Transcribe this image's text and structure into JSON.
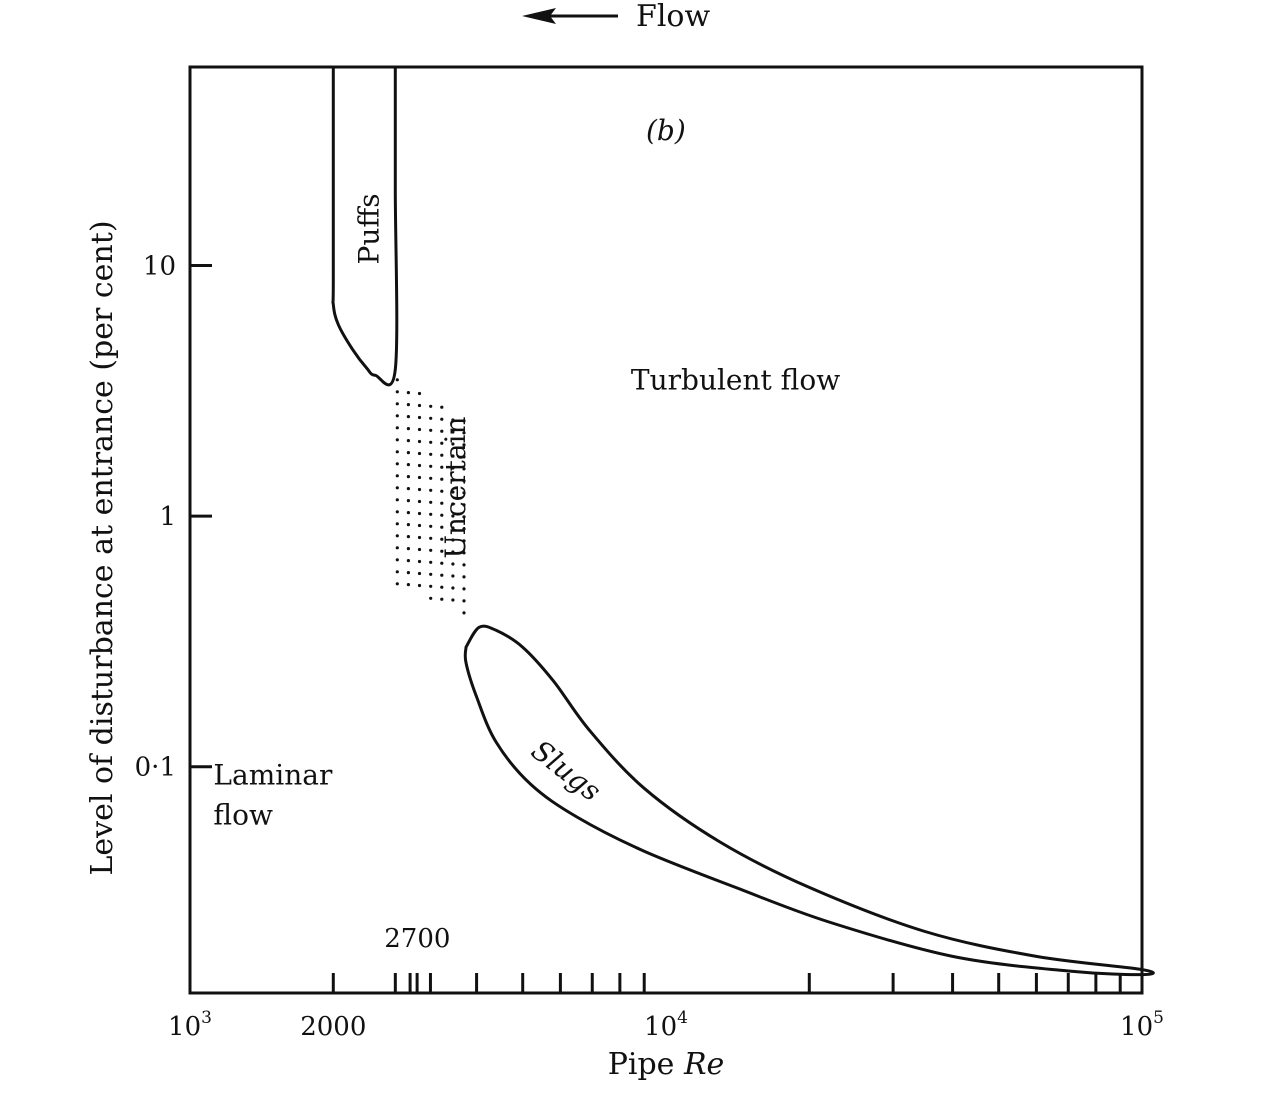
{
  "chart_data": {
    "type": "line",
    "panel_label": "(b)",
    "flow_indicator": {
      "label": "Flow",
      "direction": "left"
    },
    "xlabel": {
      "prefix": "Pipe ",
      "italic": "Re"
    },
    "ylabel": "Level of disturbance at entrance (per cent)",
    "x_scale": "log",
    "y_scale": "log",
    "xlim": [
      1000,
      100000
    ],
    "ylim": [
      0.0125,
      62
    ],
    "x_tick_labels": [
      {
        "value": 1000,
        "base": "10",
        "exp": "3"
      },
      {
        "value": 2000,
        "base": "2000",
        "exp": ""
      },
      {
        "value": 10000,
        "base": "10",
        "exp": "4"
      },
      {
        "value": 100000,
        "base": "10",
        "exp": "5"
      }
    ],
    "x_minor_ticks": [
      2000,
      3000,
      4000,
      5000,
      6000,
      7000,
      8000,
      9000,
      20000,
      30000,
      40000,
      50000,
      60000,
      70000,
      80000,
      90000
    ],
    "x_extra_ticks": [
      2700,
      2900,
      3200
    ],
    "y_ticks": [
      {
        "value": 10,
        "label": "10"
      },
      {
        "value": 1,
        "label": "1"
      },
      {
        "value": 0.1,
        "label": "0·1"
      }
    ],
    "reference_label": {
      "text": "2700",
      "x": 2700
    },
    "regions": [
      {
        "name": "Puffs",
        "type": "closed-curve",
        "orientation": "vertical",
        "label_at": [
          2370,
          14
        ]
      },
      {
        "name": "Uncertain",
        "type": "stippled",
        "orientation": "vertical",
        "label_at": [
          3600,
          1.3
        ]
      },
      {
        "name": "Slugs",
        "type": "closed-curve",
        "orientation": "rotated",
        "label_at": [
          6000,
          0.09
        ]
      },
      {
        "name": "Turbulent flow",
        "type": "open",
        "label_at": [
          14000,
          3.2
        ]
      },
      {
        "name": "Laminar flow",
        "lines": [
          "Laminar",
          "flow"
        ],
        "type": "open",
        "label_at": [
          1120,
          0.085
        ]
      }
    ],
    "series": [
      {
        "region": "Puffs",
        "closed": false,
        "points": [
          [
            2000,
            62
          ],
          [
            2000,
            9
          ],
          [
            2000,
            7
          ],
          [
            2050,
            5.8
          ],
          [
            2200,
            4.6
          ],
          [
            2350,
            3.9
          ],
          [
            2450,
            3.65
          ],
          [
            2700,
            3.85
          ],
          [
            2700,
            20
          ],
          [
            2700,
            62
          ]
        ]
      },
      {
        "region": "Slugs",
        "closed": true,
        "points": [
          [
            3800,
            0.3
          ],
          [
            4050,
            0.36
          ],
          [
            4400,
            0.35
          ],
          [
            5000,
            0.3
          ],
          [
            5800,
            0.22
          ],
          [
            6900,
            0.14
          ],
          [
            9000,
            0.082
          ],
          [
            13000,
            0.05
          ],
          [
            20000,
            0.033
          ],
          [
            35000,
            0.022
          ],
          [
            60000,
            0.0175
          ],
          [
            100000,
            0.0155
          ],
          [
            100000,
            0.0148
          ],
          [
            70000,
            0.0153
          ],
          [
            40000,
            0.0175
          ],
          [
            22000,
            0.024
          ],
          [
            14000,
            0.033
          ],
          [
            9000,
            0.046
          ],
          [
            6500,
            0.063
          ],
          [
            5200,
            0.085
          ],
          [
            4400,
            0.125
          ],
          [
            4000,
            0.19
          ],
          [
            3800,
            0.26
          ],
          [
            3800,
            0.3
          ]
        ]
      }
    ],
    "uncertain_stipple_bounds": {
      "x": [
        2700,
        3800
      ],
      "y_top_left": 3.5,
      "y_top_right": 2.4,
      "y_bottom_left": 0.52,
      "y_bottom_right": 0.4
    }
  }
}
